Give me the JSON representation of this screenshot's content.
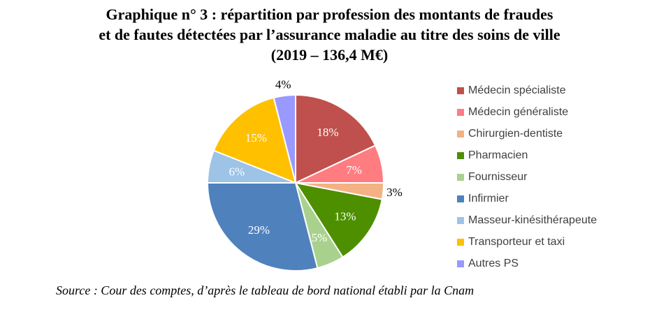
{
  "title_lines": [
    "Graphique n° 3 : répartition par profession des montants de fraudes",
    "et de fautes détectées par l’assurance maladie au titre des soins de ville",
    "(2019 – 136,4 M€)"
  ],
  "source": "Source : Cour des comptes, d’après le tableau de bord national établi par la Cnam",
  "chart_data": {
    "type": "pie",
    "title": "Graphique n° 3 : répartition par profession des montants de fraudes et de fautes détectées par l’assurance maladie au titre des soins de ville (2019 – 136,4 M€)",
    "unit": "%",
    "start": "12 o'clock, clockwise",
    "legend_position": "right",
    "slices": [
      {
        "label": "Médecin spécialiste",
        "value": 18,
        "data_label": "18%",
        "color": "#c0504d",
        "label_place": "inside"
      },
      {
        "label": "Médecin généraliste",
        "value": 7,
        "data_label": "7%",
        "color": "#ff7c80",
        "label_place": "inside"
      },
      {
        "label": "Chirurgien-dentiste",
        "value": 3,
        "data_label": "3%",
        "color": "#f4b183",
        "label_place": "outside"
      },
      {
        "label": "Pharmacien",
        "value": 13,
        "data_label": "13%",
        "color": "#4e8f00",
        "label_place": "inside"
      },
      {
        "label": "Fournisseur",
        "value": 5,
        "data_label": "5%",
        "color": "#a9d18e",
        "label_place": "inside"
      },
      {
        "label": "Infirmier",
        "value": 29,
        "data_label": "29%",
        "color": "#4f81bd",
        "label_place": "inside"
      },
      {
        "label": "Masseur-kinésithérapeute",
        "value": 6,
        "data_label": "6%",
        "color": "#9dc3e6",
        "label_place": "inside"
      },
      {
        "label": "Transporteur et taxi",
        "value": 15,
        "data_label": "15%",
        "color": "#ffc000",
        "label_place": "inside"
      },
      {
        "label": "Autres PS",
        "value": 4,
        "data_label": "4%",
        "color": "#9999ff",
        "label_place": "outside"
      }
    ]
  }
}
